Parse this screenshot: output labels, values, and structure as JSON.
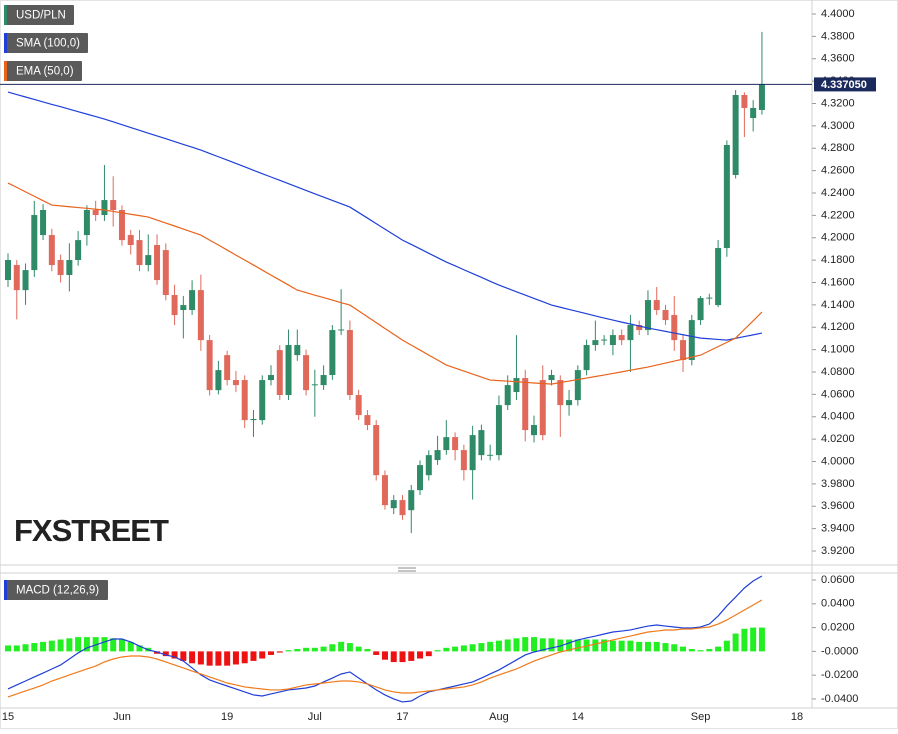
{
  "chart_data": [
    {
      "type": "candlestick",
      "name": "USD/PLN",
      "up_color": "#2f8a68",
      "down_color": "#e0695b",
      "categories": [
        "15",
        null,
        null,
        null,
        null,
        null,
        null,
        null,
        null,
        null,
        null,
        null,
        null,
        "Jun",
        null,
        null,
        null,
        null,
        null,
        null,
        null,
        null,
        null,
        null,
        null,
        "19",
        null,
        null,
        null,
        null,
        null,
        null,
        null,
        null,
        null,
        "Jul",
        null,
        null,
        null,
        null,
        null,
        null,
        null,
        null,
        null,
        "17",
        null,
        null,
        null,
        null,
        null,
        null,
        null,
        null,
        null,
        null,
        "Aug",
        null,
        null,
        null,
        null,
        null,
        null,
        null,
        null,
        "14",
        null,
        null,
        null,
        null,
        null,
        null,
        null,
        null,
        null,
        null,
        null,
        null,
        null,
        "Sep",
        null,
        null,
        null,
        null,
        null,
        null,
        null,
        null,
        null,
        null,
        "18"
      ],
      "open": [
        4.1622,
        4.1756,
        4.1532,
        4.1711,
        4.2024,
        4.2024,
        4.1801,
        4.1667,
        4.1801,
        4.2024,
        4.2248,
        4.2203,
        4.2337,
        4.2248,
        4.2024,
        4.1979,
        4.1756,
        4.1935,
        4.189,
        4.1488,
        4.1354,
        4.1354,
        4.1532,
        4.1085,
        4.0638,
        4.0951,
        4.0728,
        4.0728,
        4.037,
        4.037,
        4.0728,
        4.0996,
        4.0594,
        4.0951,
        4.0951,
        4.0683,
        4.0683,
        4.0773,
        4.1175,
        4.1175,
        4.0594,
        4.0415,
        4.0326,
        3.9878,
        3.9583,
        3.9655,
        3.9565,
        3.9744,
        3.9878,
        4.0013,
        4.0102,
        4.0218,
        4.0102,
        3.9923,
        4.0057,
        4.0057,
        4.0057,
        4.0504,
        4.0621,
        4.0746,
        4.0236,
        4.0728,
        4.0728,
        4.0728,
        4.0504,
        4.0549,
        4.0817,
        4.1041,
        4.1085,
        4.1041,
        4.113,
        4.1085,
        4.122,
        4.1175,
        4.1443,
        4.1354,
        4.1309,
        4.1085,
        4.0907,
        4.1264,
        4.1461,
        4.1398,
        4.1908,
        4.2561,
        4.3276,
        4.307,
        4.3142,
        null,
        null,
        null,
        null
      ],
      "high": [
        4.186,
        4.18,
        4.177,
        4.233,
        4.23,
        4.208,
        4.185,
        4.195,
        4.206,
        4.229,
        4.233,
        4.265,
        4.255,
        4.229,
        4.207,
        4.207,
        4.203,
        4.203,
        4.195,
        4.158,
        4.148,
        4.162,
        4.167,
        4.113,
        4.09,
        4.099,
        4.081,
        4.077,
        4.046,
        4.077,
        4.086,
        4.104,
        4.118,
        4.118,
        4.1,
        4.082,
        4.086,
        4.122,
        4.154,
        4.126,
        4.064,
        4.046,
        4.037,
        3.992,
        3.97,
        3.97,
        3.979,
        4.001,
        4.01,
        4.023,
        4.037,
        4.026,
        4.015,
        4.032,
        4.033,
        4.015,
        4.059,
        4.077,
        4.113,
        4.082,
        4.041,
        4.086,
        4.082,
        4.077,
        4.064,
        4.086,
        4.109,
        4.126,
        4.113,
        4.118,
        4.118,
        4.131,
        4.126,
        4.153,
        4.156,
        4.14,
        4.148,
        4.113,
        4.131,
        4.148,
        4.15,
        4.198,
        4.287,
        4.332,
        4.33,
        4.323,
        4.384,
        null,
        null,
        null,
        null
      ],
      "low": [
        4.156,
        4.127,
        4.14,
        4.165,
        4.198,
        4.17,
        4.16,
        4.152,
        4.175,
        4.193,
        4.215,
        4.215,
        4.21,
        4.193,
        4.185,
        4.17,
        4.17,
        4.158,
        4.144,
        4.122,
        4.11,
        4.131,
        4.099,
        4.059,
        4.06,
        4.068,
        4.062,
        4.03,
        4.022,
        4.033,
        4.068,
        4.055,
        4.055,
        4.09,
        4.059,
        4.04,
        4.064,
        4.073,
        4.113,
        4.055,
        4.037,
        4.028,
        3.983,
        3.957,
        3.953,
        3.948,
        3.936,
        3.97,
        3.983,
        3.997,
        4.006,
        4.001,
        3.983,
        3.966,
        4.001,
        4.001,
        4.001,
        4.046,
        4.055,
        4.018,
        4.017,
        4.019,
        4.068,
        4.022,
        4.041,
        4.05,
        4.077,
        4.099,
        4.104,
        4.095,
        4.104,
        4.08,
        4.113,
        4.113,
        4.131,
        4.122,
        4.099,
        4.08,
        4.086,
        4.122,
        4.14,
        4.138,
        4.183,
        4.253,
        4.29,
        4.295,
        4.31,
        null,
        null,
        null,
        null
      ],
      "close": [
        4.1801,
        4.1532,
        4.1711,
        4.2203,
        4.2248,
        4.1756,
        4.1667,
        4.1801,
        4.1979,
        4.2248,
        4.2203,
        4.2337,
        4.2248,
        4.1979,
        4.1935,
        4.1756,
        4.1845,
        4.1622,
        4.1488,
        4.1309,
        4.1398,
        4.1532,
        4.1085,
        4.0638,
        4.0817,
        4.0728,
        4.0683,
        4.037,
        4.038,
        4.0728,
        4.0773,
        4.0594,
        4.1041,
        4.1041,
        4.0638,
        4.069,
        4.0773,
        4.1175,
        4.118,
        4.0594,
        4.0415,
        4.0326,
        3.9878,
        3.961,
        3.9655,
        3.9521,
        3.9744,
        3.9968,
        4.0057,
        4.0102,
        4.0218,
        4.0102,
        3.9923,
        4.0236,
        4.0281,
        4.006,
        4.0504,
        4.0683,
        4.0746,
        4.0281,
        4.0326,
        4.0236,
        4.0773,
        4.0504,
        4.0549,
        4.0817,
        4.1041,
        4.1085,
        4.109,
        4.113,
        4.1085,
        4.122,
        4.1175,
        4.1443,
        4.1354,
        4.1264,
        4.1085,
        4.0907,
        4.1264,
        4.1461,
        4.1465,
        4.1908,
        4.2829,
        4.3276,
        4.316,
        4.316,
        4.33705,
        null,
        null,
        null,
        null
      ],
      "series": [
        {
          "name": "SMA (100,0)",
          "color": "#1f3fd8",
          "values": [
            4.3302,
            4.328,
            4.3258,
            4.3236,
            4.3214,
            4.3192,
            4.3171,
            4.3149,
            4.3127,
            4.3105,
            4.3083,
            4.3061,
            4.3036,
            4.3011,
            4.2985,
            4.296,
            4.2935,
            4.291,
            4.2885,
            4.286,
            4.2834,
            4.2809,
            4.2784,
            4.2754,
            4.2724,
            4.2694,
            4.2664,
            4.2634,
            4.2603,
            4.2573,
            4.2543,
            4.2513,
            4.2483,
            4.2453,
            4.2423,
            4.2393,
            4.2364,
            4.2334,
            4.2304,
            4.2274,
            4.2225,
            4.2176,
            4.2126,
            4.2077,
            4.2028,
            4.1979,
            4.194,
            4.1901,
            4.1861,
            4.1822,
            4.1783,
            4.1749,
            4.1714,
            4.168,
            4.1646,
            4.1611,
            4.1577,
            4.1547,
            4.1517,
            4.1488,
            4.1458,
            4.1428,
            4.1398,
            4.1379,
            4.1359,
            4.134,
            4.1321,
            4.1301,
            4.1282,
            4.1264,
            4.1246,
            4.1229,
            4.1211,
            4.1193,
            4.1178,
            4.1163,
            4.1148,
            4.1133,
            4.1118,
            4.1103,
            4.1097,
            4.1091,
            4.1085,
            4.1101,
            4.1117,
            4.1132,
            4.1148,
            null,
            null,
            null,
            null
          ]
        },
        {
          "name": "EMA (50,0)",
          "color": "#e8631c",
          "values": [
            4.2489,
            4.245,
            4.241,
            4.2371,
            4.2331,
            4.2292,
            4.2285,
            4.2277,
            4.227,
            4.2263,
            4.2255,
            4.2248,
            4.2235,
            4.2223,
            4.221,
            4.2198,
            4.2185,
            4.2158,
            4.2131,
            4.2105,
            4.2078,
            4.2051,
            4.2024,
            4.1979,
            4.1935,
            4.189,
            4.1845,
            4.1801,
            4.1756,
            4.1711,
            4.1666,
            4.1622,
            4.1577,
            4.1532,
            4.151,
            4.1487,
            4.1465,
            4.1443,
            4.142,
            4.1398,
            4.1346,
            4.1294,
            4.1241,
            4.1189,
            4.1137,
            4.1085,
            4.104,
            4.0996,
            4.0951,
            4.0907,
            4.0862,
            4.0835,
            4.0808,
            4.0782,
            4.0755,
            4.0728,
            4.0723,
            4.0718,
            4.0713,
            4.0708,
            4.0702,
            4.0697,
            4.0692,
            4.0706,
            4.0719,
            4.0733,
            4.0746,
            4.076,
            4.0773,
            4.0787,
            4.0801,
            4.0816,
            4.083,
            4.0844,
            4.0862,
            4.088,
            4.0898,
            4.0915,
            4.0933,
            4.0951,
            4.0989,
            4.1027,
            4.1065,
            4.1103,
            4.1181,
            4.1258,
            4.1336,
            null,
            null,
            null,
            null
          ]
        }
      ],
      "ylim": [
        3.9075,
        4.4125
      ],
      "yticks": [
        {
          "value": 3.92,
          "label": "3.9200"
        },
        {
          "value": 3.94,
          "label": "3.9400"
        },
        {
          "value": 3.96,
          "label": "3.9600"
        },
        {
          "value": 3.98,
          "label": "3.9800"
        },
        {
          "value": 4.0,
          "label": "4.0000"
        },
        {
          "value": 4.02,
          "label": "4.0200"
        },
        {
          "value": 4.04,
          "label": "4.0400"
        },
        {
          "value": 4.06,
          "label": "4.0600"
        },
        {
          "value": 4.08,
          "label": "4.0800"
        },
        {
          "value": 4.1,
          "label": "4.1000"
        },
        {
          "value": 4.12,
          "label": "4.1200"
        },
        {
          "value": 4.14,
          "label": "4.1400"
        },
        {
          "value": 4.16,
          "label": "4.1600"
        },
        {
          "value": 4.18,
          "label": "4.1800"
        },
        {
          "value": 4.2,
          "label": "4.2000"
        },
        {
          "value": 4.22,
          "label": "4.2200"
        },
        {
          "value": 4.24,
          "label": "4.2400"
        },
        {
          "value": 4.26,
          "label": "4.2600"
        },
        {
          "value": 4.28,
          "label": "4.2800"
        },
        {
          "value": 4.3,
          "label": "4.3000"
        },
        {
          "value": 4.32,
          "label": "4.3200"
        },
        {
          "value": 4.34,
          "label": "4.3400"
        },
        {
          "value": 4.36,
          "label": "4.3600"
        },
        {
          "value": 4.38,
          "label": "4.3800"
        },
        {
          "value": 4.4,
          "label": "4.4000"
        }
      ],
      "last_price": {
        "value": 4.33705,
        "label": "4.337050"
      },
      "last_price_color": "#1b2a5c",
      "watermark": "FXSTREET"
    },
    {
      "type": "macd",
      "name": "MACD (12,26,9)",
      "up_color": "#22ee22",
      "down_color": "#ee1111",
      "series": [
        {
          "color": "#1f3fd8",
          "values": [
            -0.0316,
            -0.0282,
            -0.0249,
            -0.0215,
            -0.0182,
            -0.0148,
            -0.0114,
            -0.0064,
            -0.0013,
            0.0029,
            0.0054,
            0.0079,
            0.0104,
            0.0104,
            0.0079,
            0.0045,
            0.0012,
            -0.0005,
            -0.003,
            -0.0047,
            -0.0081,
            -0.0139,
            -0.0198,
            -0.024,
            -0.0266,
            -0.0291,
            -0.0316,
            -0.0341,
            -0.0366,
            -0.0375,
            -0.0358,
            -0.0341,
            -0.0324,
            -0.0316,
            -0.0308,
            -0.0291,
            -0.0257,
            -0.0224,
            -0.019,
            -0.0173,
            -0.0224,
            -0.0274,
            -0.0324,
            -0.0366,
            -0.04,
            -0.0425,
            -0.0417,
            -0.0375,
            -0.0341,
            -0.0324,
            -0.0308,
            -0.0291,
            -0.0274,
            -0.0257,
            -0.0224,
            -0.019,
            -0.0156,
            -0.0114,
            -0.0072,
            -0.003,
            -0.0005,
            0.0012,
            0.0029,
            0.0045,
            0.0071,
            0.0096,
            0.0113,
            0.0129,
            0.0146,
            0.0163,
            0.0171,
            0.018,
            0.0197,
            0.0213,
            0.0222,
            0.0213,
            0.0205,
            0.0197,
            0.0197,
            0.0205,
            0.023,
            0.0297,
            0.0382,
            0.0457,
            0.0533,
            0.0592,
            0.0634,
            null,
            null,
            null,
            null
          ]
        },
        {
          "color": "#f07a1a",
          "values": [
            -0.0383,
            -0.0358,
            -0.0333,
            -0.0308,
            -0.0282,
            -0.0249,
            -0.0224,
            -0.0198,
            -0.0173,
            -0.0148,
            -0.0123,
            -0.0089,
            -0.0064,
            -0.0047,
            -0.0039,
            -0.0039,
            -0.0047,
            -0.0064,
            -0.0089,
            -0.0114,
            -0.0139,
            -0.0165,
            -0.019,
            -0.0215,
            -0.024,
            -0.0266,
            -0.0282,
            -0.0299,
            -0.0308,
            -0.0316,
            -0.0324,
            -0.0324,
            -0.0316,
            -0.0299,
            -0.0282,
            -0.0274,
            -0.0266,
            -0.0257,
            -0.0249,
            -0.0249,
            -0.0257,
            -0.0274,
            -0.0299,
            -0.0324,
            -0.0341,
            -0.035,
            -0.035,
            -0.0341,
            -0.0333,
            -0.0324,
            -0.0316,
            -0.0308,
            -0.0299,
            -0.0282,
            -0.0257,
            -0.0224,
            -0.0198,
            -0.0173,
            -0.0148,
            -0.0114,
            -0.0081,
            -0.0055,
            -0.003,
            -0.0005,
            0.0012,
            0.0029,
            0.0045,
            0.0062,
            0.0079,
            0.0096,
            0.0113,
            0.0129,
            0.0146,
            0.0163,
            0.0171,
            0.018,
            0.018,
            0.0188,
            0.0188,
            0.0197,
            0.0205,
            0.023,
            0.0264,
            0.0306,
            0.0348,
            0.039,
            0.0432,
            null,
            null,
            null,
            null
          ]
        }
      ],
      "histogram": [
        0.005,
        0.005,
        0.006,
        0.007,
        0.008,
        0.009,
        0.01,
        0.011,
        0.012,
        0.012,
        0.012,
        0.012,
        0.011,
        0.01,
        0.008,
        0.005,
        0.003,
        -0.002,
        -0.004,
        -0.006,
        -0.008,
        -0.01,
        -0.011,
        -0.012,
        -0.012,
        -0.012,
        -0.011,
        -0.01,
        -0.008,
        -0.006,
        -0.003,
        -0.001,
        0.001,
        0.002,
        0.003,
        0.003,
        0.004,
        0.006,
        0.008,
        0.007,
        0.004,
        0.002,
        -0.003,
        -0.007,
        -0.009,
        -0.009,
        -0.008,
        -0.006,
        -0.004,
        0.001,
        0.003,
        0.004,
        0.005,
        0.006,
        0.007,
        0.008,
        0.009,
        0.01,
        0.011,
        0.012,
        0.012,
        0.011,
        0.011,
        0.01,
        0.01,
        0.01,
        0.01,
        0.01,
        0.01,
        0.009,
        0.009,
        0.009,
        0.008,
        0.008,
        0.008,
        0.007,
        0.006,
        0.004,
        0.002,
        0.001,
        0.002,
        0.004,
        0.009,
        0.015,
        0.019,
        0.02,
        0.02,
        null,
        null,
        null,
        null
      ],
      "ylim": [
        -0.0476,
        0.0659
      ],
      "yticks": [
        {
          "value": -0.04,
          "label": "-0.0400"
        },
        {
          "value": -0.02,
          "label": "-0.0200"
        },
        {
          "value": 0,
          "label": "-0.0000"
        },
        {
          "value": 0.02,
          "label": "0.0200"
        },
        {
          "value": 0.04,
          "label": "0.0400"
        },
        {
          "value": 0.06,
          "label": "0.0600"
        }
      ]
    }
  ]
}
